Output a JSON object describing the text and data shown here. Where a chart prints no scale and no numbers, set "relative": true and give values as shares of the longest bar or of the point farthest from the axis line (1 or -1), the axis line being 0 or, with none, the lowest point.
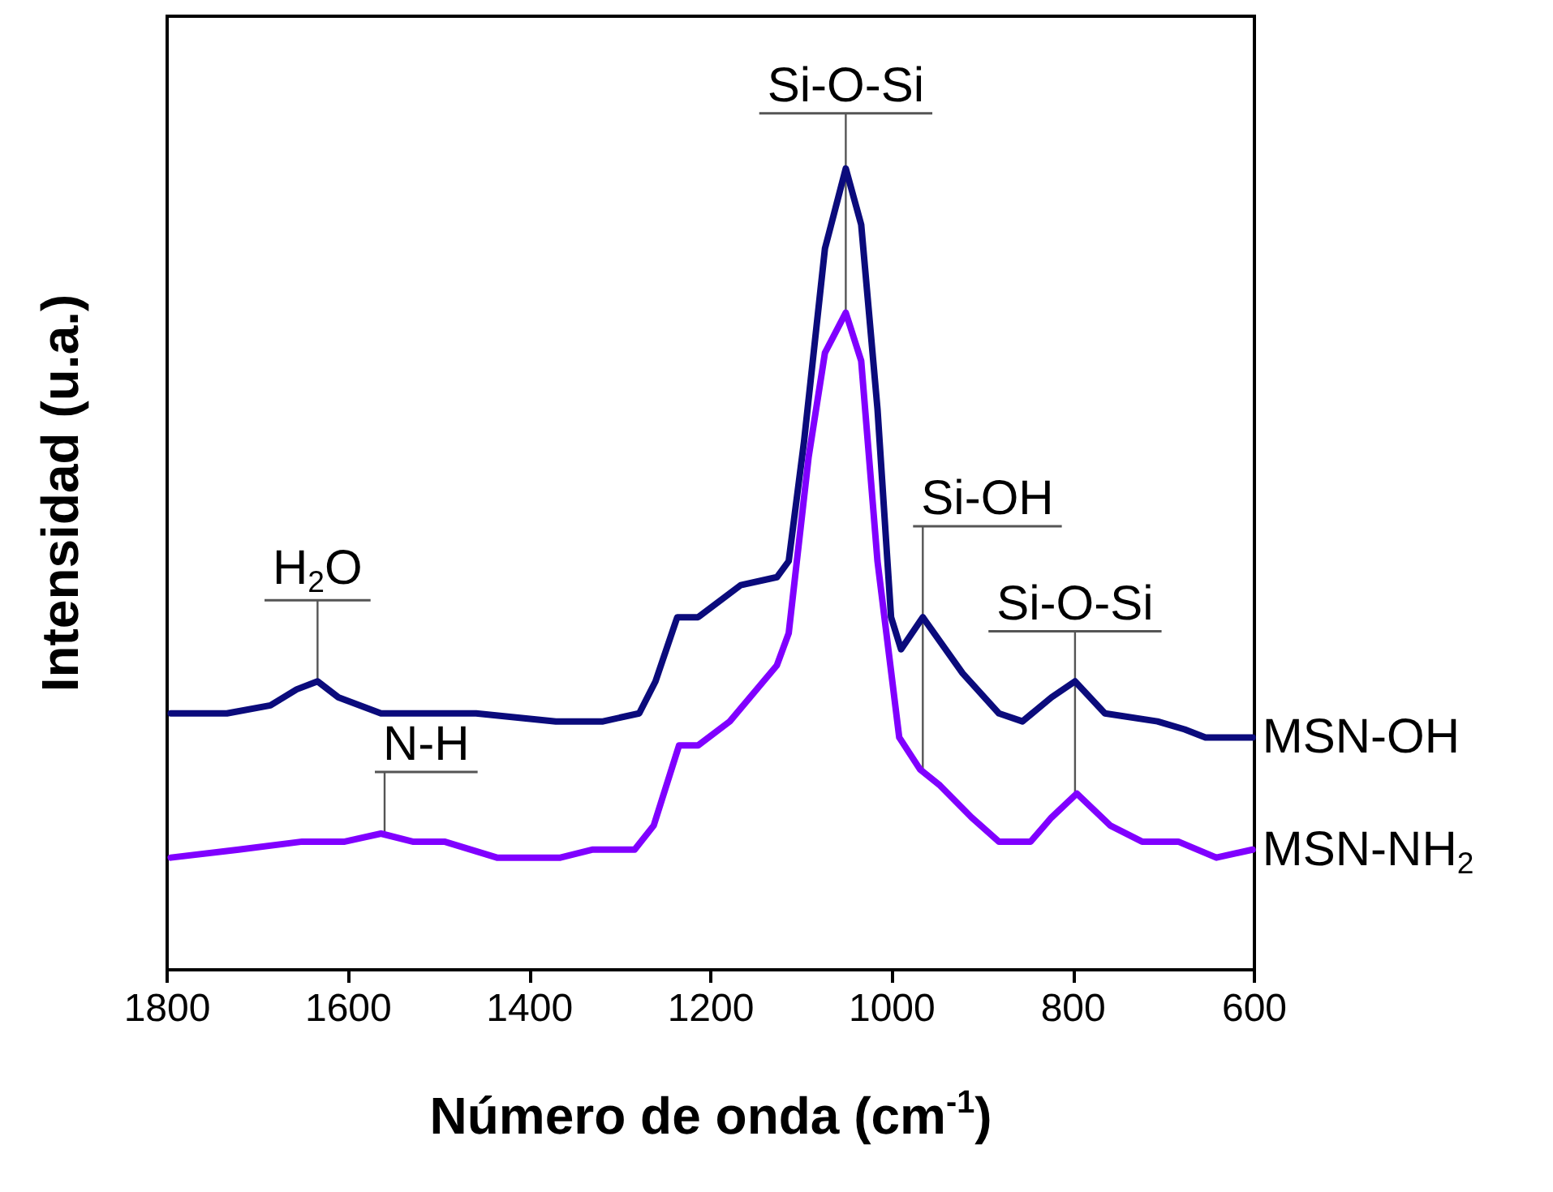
{
  "chart_data": {
    "type": "line",
    "relative": true,
    "xlabel": "Número de onda (cm$^{-1}$)",
    "ylabel": "Intensidad (u.a.)",
    "xlim": [
      1800,
      600
    ],
    "xticks": [
      1800,
      1600,
      1400,
      1200,
      1000,
      800,
      600
    ],
    "grid": false,
    "legend": false,
    "marker": "none",
    "line_style": "solid",
    "series": [
      {
        "name": "MSN-OH",
        "color": "#0b0b7c",
        "x": [
          1796,
          1734,
          1686,
          1657,
          1634,
          1611,
          1564,
          1459,
          1371,
          1319,
          1279,
          1261,
          1237,
          1214,
          1167,
          1127,
          1114,
          1097,
          1074,
          1051,
          1034,
          1016,
          1001,
          990,
          966,
          922,
          882,
          856,
          824,
          798,
          765,
          707,
          677,
          654,
          602
        ],
        "values": [
          0.32,
          0.32,
          0.33,
          0.35,
          0.36,
          0.34,
          0.32,
          0.32,
          0.31,
          0.31,
          0.32,
          0.36,
          0.44,
          0.44,
          0.48,
          0.49,
          0.51,
          0.66,
          0.9,
          1.0,
          0.93,
          0.7,
          0.44,
          0.4,
          0.44,
          0.37,
          0.32,
          0.31,
          0.34,
          0.36,
          0.32,
          0.31,
          0.3,
          0.29,
          0.29
        ]
      },
      {
        "name": "MSN-NH$_{2}$",
        "color": "#8000ff",
        "x": [
          1796,
          1721,
          1651,
          1604,
          1564,
          1529,
          1494,
          1436,
          1366,
          1331,
          1284,
          1263,
          1235,
          1214,
          1179,
          1127,
          1114,
          1092,
          1074,
          1051,
          1034,
          1016,
          992,
          969,
          947,
          912,
          882,
          847,
          824,
          796,
          759,
          724,
          684,
          642,
          602
        ],
        "values": [
          0.14,
          0.15,
          0.16,
          0.16,
          0.17,
          0.16,
          0.16,
          0.14,
          0.14,
          0.15,
          0.15,
          0.18,
          0.28,
          0.28,
          0.31,
          0.38,
          0.42,
          0.64,
          0.77,
          0.82,
          0.76,
          0.51,
          0.29,
          0.25,
          0.23,
          0.19,
          0.16,
          0.16,
          0.19,
          0.22,
          0.18,
          0.16,
          0.16,
          0.14,
          0.15
        ]
      }
    ],
    "annotations": [
      {
        "text": "H$_{2}$O",
        "x": 1634,
        "y": 0.36
      },
      {
        "text": "N-H",
        "x": 1560,
        "y": 0.17
      },
      {
        "text": "Si-O-Si",
        "x": 1051,
        "y": 0.82
      },
      {
        "text": "Si-OH",
        "x": 966,
        "y": 0.25
      },
      {
        "text": "Si-O-Si",
        "x": 798,
        "y": 0.22
      }
    ]
  }
}
